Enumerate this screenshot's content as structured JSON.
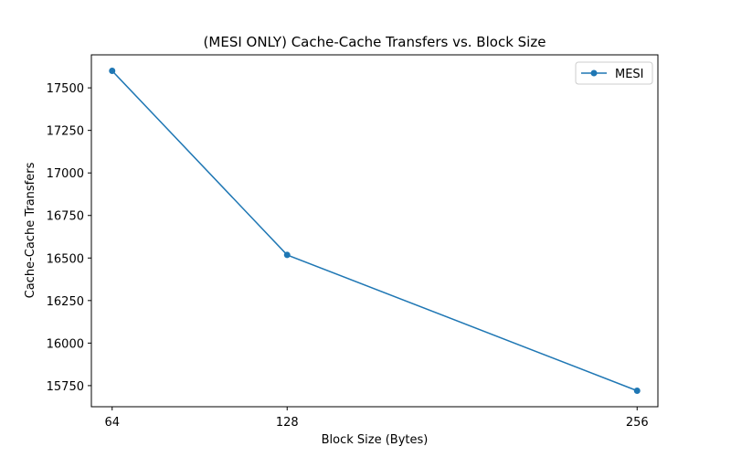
{
  "chart_data": {
    "type": "line",
    "title": "(MESI ONLY) Cache-Cache Transfers vs. Block Size",
    "xlabel": "Block Size (Bytes)",
    "ylabel": "Cache-Cache Transfers",
    "x": [
      64,
      128,
      256
    ],
    "x_tick_labels": [
      "64",
      "128",
      "256"
    ],
    "series": [
      {
        "name": "MESI",
        "values": [
          17600,
          16518,
          15720
        ]
      }
    ],
    "xlim": [
      56.4,
      263.6
    ],
    "ylim": [
      15626,
      17694
    ],
    "y_ticks": [
      15750,
      16000,
      16250,
      16500,
      16750,
      17000,
      17250,
      17500
    ],
    "grid": false,
    "legend_position": "top-right",
    "colors": {
      "series": "#1f77b4"
    }
  }
}
